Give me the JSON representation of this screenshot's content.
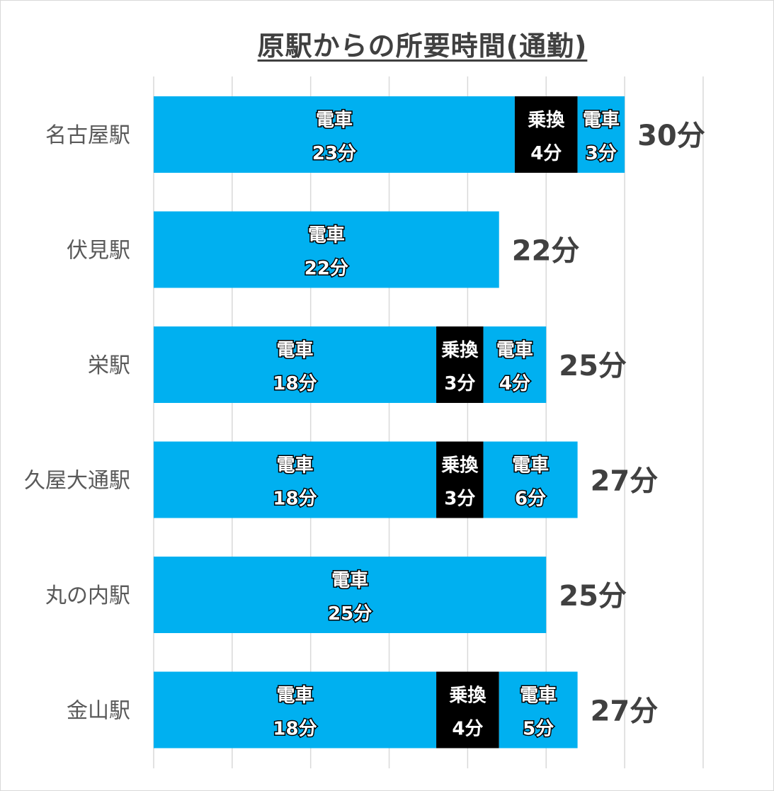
{
  "chart_data": {
    "type": "bar",
    "orientation": "horizontal",
    "stacked": true,
    "title": "原駅からの所要時間(通勤)",
    "xlim": [
      0,
      35
    ],
    "grid": true,
    "categories": [
      "名古屋駅",
      "伏見駅",
      "栄駅",
      "久屋大通駅",
      "丸の内駅",
      "金山駅"
    ],
    "totals": [
      "30分",
      "22分",
      "25分",
      "27分",
      "25分",
      "27分"
    ],
    "rows": [
      {
        "category": "名古屋駅",
        "segments": [
          {
            "type": "電車",
            "value": 23,
            "label": "23分"
          },
          {
            "type": "乗換",
            "value": 4,
            "label": "4分"
          },
          {
            "type": "電車",
            "value": 3,
            "label": "3分"
          }
        ]
      },
      {
        "category": "伏見駅",
        "segments": [
          {
            "type": "電車",
            "value": 22,
            "label": "22分"
          }
        ]
      },
      {
        "category": "栄駅",
        "segments": [
          {
            "type": "電車",
            "value": 18,
            "label": "18分"
          },
          {
            "type": "乗換",
            "value": 3,
            "label": "3分"
          },
          {
            "type": "電車",
            "value": 4,
            "label": "4分"
          }
        ]
      },
      {
        "category": "久屋大通駅",
        "segments": [
          {
            "type": "電車",
            "value": 18,
            "label": "18分"
          },
          {
            "type": "乗換",
            "value": 3,
            "label": "3分"
          },
          {
            "type": "電車",
            "value": 6,
            "label": "6分"
          }
        ]
      },
      {
        "category": "丸の内駅",
        "segments": [
          {
            "type": "電車",
            "value": 25,
            "label": "25分"
          }
        ]
      },
      {
        "category": "金山駅",
        "segments": [
          {
            "type": "電車",
            "value": 18,
            "label": "18分"
          },
          {
            "type": "乗換",
            "value": 4,
            "label": "4分"
          },
          {
            "type": "電車",
            "value": 5,
            "label": "5分"
          }
        ]
      }
    ]
  },
  "colors": {
    "電車": "#00b0f0",
    "乗換": "#000000",
    "grid": "#d9d9d9"
  }
}
